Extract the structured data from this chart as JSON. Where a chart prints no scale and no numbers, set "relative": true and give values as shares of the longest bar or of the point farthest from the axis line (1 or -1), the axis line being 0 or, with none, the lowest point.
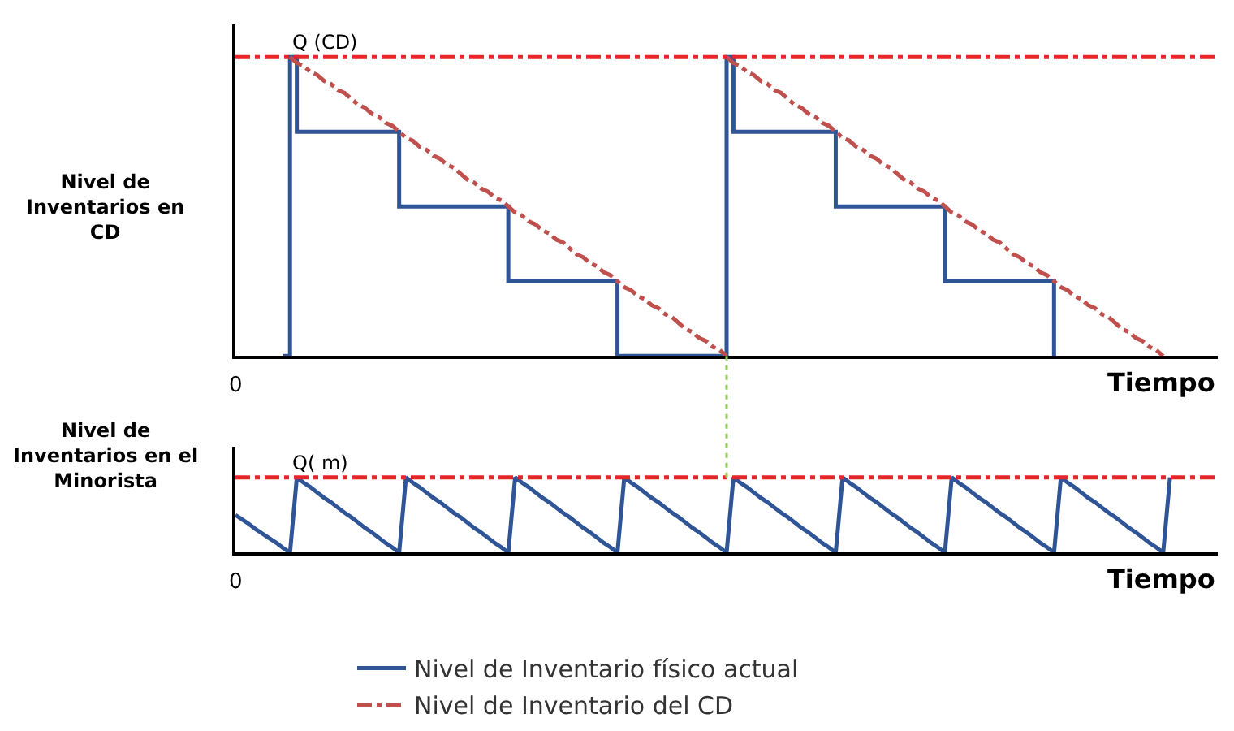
{
  "chart_data": [
    {
      "type": "line",
      "relative": true,
      "ylabel": "Nivel de\nInventarios en\nCD",
      "xlabel": "Tiempo",
      "annotations": [
        "0"
      ],
      "legend": "bottom",
      "categories": [
        null,
        null,
        null,
        null,
        null,
        null,
        null,
        null,
        null,
        null,
        null,
        null,
        null,
        null,
        null,
        null,
        null,
        null,
        null,
        null,
        null,
        null,
        null,
        null,
        null,
        null,
        null,
        null,
        null,
        null,
        null,
        null,
        null,
        null,
        null,
        null,
        null,
        null,
        null,
        null,
        null,
        null,
        null,
        null,
        null,
        null,
        null,
        null,
        null,
        null,
        null,
        null,
        null,
        null,
        null,
        null,
        null,
        null,
        null,
        null,
        null,
        null,
        null,
        null,
        null,
        null,
        null,
        null,
        null,
        null,
        null,
        null,
        null,
        null,
        null,
        null,
        null,
        null,
        null,
        null,
        null,
        null,
        null,
        null,
        null,
        null,
        null,
        null,
        null,
        null,
        null,
        null,
        null,
        null,
        null,
        null,
        null,
        null,
        null,
        null,
        null,
        null,
        null,
        null,
        null,
        null,
        null,
        null,
        null,
        null,
        null,
        null,
        null,
        null,
        null,
        null,
        null,
        null,
        null,
        null,
        null,
        null,
        null,
        null,
        null,
        null,
        null,
        null,
        null,
        null,
        null,
        null,
        null,
        null,
        null,
        null,
        null,
        null,
        null,
        null,
        null,
        null,
        null,
        null,
        null
      ],
      "series": [
        {
          "name": "Nivel de Inventario físico actual",
          "type": "step",
          "color": "#2f5597",
          "line_style": "solid",
          "values": [
            null,
            null,
            null,
            null,
            null,
            null,
            null,
            0,
            1,
            0.75,
            0.75,
            0.75,
            0.75,
            0.75,
            0.75,
            0.75,
            0.75,
            0.75,
            0.75,
            0.75,
            0.75,
            0.75,
            0.75,
            0.75,
            0.5,
            0.5,
            0.5,
            0.5,
            0.5,
            0.5,
            0.5,
            0.5,
            0.5,
            0.5,
            0.5,
            0.5,
            0.5,
            0.5,
            0.5,
            0.5,
            0.25,
            0.25,
            0.25,
            0.25,
            0.25,
            0.25,
            0.25,
            0.25,
            0.25,
            0.25,
            0.25,
            0.25,
            0.25,
            0.25,
            0.25,
            0.25,
            0,
            0,
            0,
            0,
            0,
            0,
            0,
            0,
            0,
            0,
            0,
            0,
            0,
            0,
            0,
            0,
            1,
            0.75,
            0.75,
            0.75,
            0.75,
            0.75,
            0.75,
            0.75,
            0.75,
            0.75,
            0.75,
            0.75,
            0.75,
            0.75,
            0.75,
            0.75,
            0.5,
            0.5,
            0.5,
            0.5,
            0.5,
            0.5,
            0.5,
            0.5,
            0.5,
            0.5,
            0.5,
            0.5,
            0.5,
            0.5,
            0.5,
            0.5,
            0.25,
            0.25,
            0.25,
            0.25,
            0.25,
            0.25,
            0.25,
            0.25,
            0.25,
            0.25,
            0.25,
            0.25,
            0.25,
            0.25,
            0.25,
            0.25,
            0,
            null,
            null,
            null,
            null,
            null,
            null,
            null,
            null,
            null,
            null,
            null,
            null,
            null,
            null,
            null,
            null,
            null,
            null,
            null,
            null,
            null,
            null,
            null,
            null
          ]
        },
        {
          "name": "Nivel de Inventario del CD",
          "color": "#c0504d",
          "line_style": "dashdot",
          "values": [
            null,
            null,
            null,
            null,
            null,
            null,
            null,
            null,
            1,
            0.98,
            0.97,
            0.95,
            0.94,
            0.92,
            0.91,
            0.89,
            0.88,
            0.86,
            0.84,
            0.83,
            0.81,
            0.8,
            0.78,
            0.77,
            0.75,
            0.73,
            0.72,
            0.7,
            0.69,
            0.67,
            0.66,
            0.64,
            0.63,
            0.61,
            0.59,
            0.58,
            0.56,
            0.55,
            0.53,
            0.52,
            0.5,
            0.48,
            0.47,
            0.45,
            0.44,
            0.42,
            0.41,
            0.39,
            0.38,
            0.36,
            0.34,
            0.33,
            0.31,
            0.3,
            0.28,
            0.27,
            0.25,
            0.23,
            0.22,
            0.2,
            0.19,
            0.17,
            0.16,
            0.14,
            0.13,
            0.11,
            0.09,
            0.08,
            0.06,
            0.05,
            0.03,
            0.02,
            0,
            null,
            null,
            null,
            null,
            null,
            null,
            null,
            null,
            null,
            null,
            null,
            null,
            null,
            null,
            null,
            null,
            null,
            null,
            null,
            null,
            null,
            null,
            null,
            null,
            null,
            null,
            null,
            null,
            null,
            null,
            null,
            null,
            null,
            null,
            null,
            null,
            null,
            null,
            null,
            null,
            null,
            null,
            null,
            null,
            null,
            null,
            null,
            null,
            null,
            null,
            null,
            null,
            null,
            null,
            null,
            null,
            null,
            null,
            null,
            null,
            null,
            null,
            null,
            null,
            null,
            null,
            null,
            null,
            null,
            null,
            null,
            null
          ]
        },
        {
          "color": "#c0504d",
          "line_style": "dashdot",
          "values": [
            null,
            null,
            null,
            null,
            null,
            null,
            null,
            null,
            null,
            null,
            null,
            null,
            null,
            null,
            null,
            null,
            null,
            null,
            null,
            null,
            null,
            null,
            null,
            null,
            null,
            null,
            null,
            null,
            null,
            null,
            null,
            null,
            null,
            null,
            null,
            null,
            null,
            null,
            null,
            null,
            null,
            null,
            null,
            null,
            null,
            null,
            null,
            null,
            null,
            null,
            null,
            null,
            null,
            null,
            null,
            null,
            null,
            null,
            null,
            null,
            null,
            null,
            null,
            null,
            null,
            null,
            null,
            null,
            null,
            null,
            null,
            null,
            1,
            0.98,
            0.97,
            0.95,
            0.94,
            0.92,
            0.91,
            0.89,
            0.88,
            0.86,
            0.84,
            0.83,
            0.81,
            0.8,
            0.78,
            0.77,
            0.75,
            0.73,
            0.72,
            0.7,
            0.69,
            0.67,
            0.66,
            0.64,
            0.63,
            0.61,
            0.59,
            0.58,
            0.56,
            0.55,
            0.53,
            0.52,
            0.5,
            0.48,
            0.47,
            0.45,
            0.44,
            0.42,
            0.41,
            0.39,
            0.38,
            0.36,
            0.34,
            0.33,
            0.31,
            0.3,
            0.28,
            0.27,
            0.25,
            0.23,
            0.22,
            0.2,
            0.19,
            0.17,
            0.16,
            0.14,
            0.13,
            0.11,
            0.09,
            0.08,
            0.06,
            0.05,
            0.03,
            0.02,
            0,
            null,
            null,
            null,
            null,
            null,
            null,
            null,
            null
          ]
        }
      ],
      "ref_lines": [
        {
          "axis": "y",
          "value": 1,
          "label": "Q (CD)",
          "color": "#e8262a",
          "line_style": "dashdot"
        }
      ]
    },
    {
      "type": "line",
      "relative": true,
      "ylabel": "Nivel de\nInventarios en el\nMinorista",
      "xlabel": "Tiempo",
      "annotations": [
        "0"
      ],
      "categories": [
        null,
        null,
        null,
        null,
        null,
        null,
        null,
        null,
        null,
        null,
        null,
        null,
        null,
        null,
        null,
        null,
        null,
        null,
        null,
        null,
        null,
        null,
        null,
        null,
        null,
        null,
        null,
        null,
        null,
        null,
        null,
        null,
        null,
        null,
        null,
        null,
        null,
        null,
        null,
        null,
        null,
        null,
        null,
        null,
        null,
        null,
        null,
        null,
        null,
        null,
        null,
        null,
        null,
        null,
        null,
        null,
        null,
        null,
        null,
        null,
        null,
        null,
        null,
        null,
        null,
        null,
        null,
        null,
        null,
        null,
        null,
        null,
        null,
        null,
        null,
        null,
        null,
        null,
        null,
        null,
        null,
        null,
        null,
        null,
        null,
        null,
        null,
        null,
        null,
        null,
        null,
        null,
        null,
        null,
        null,
        null,
        null,
        null,
        null,
        null,
        null,
        null,
        null,
        null,
        null,
        null,
        null,
        null,
        null,
        null,
        null,
        null,
        null,
        null,
        null,
        null,
        null,
        null,
        null,
        null,
        null,
        null,
        null,
        null,
        null,
        null,
        null,
        null,
        null,
        null,
        null,
        null,
        null,
        null,
        null,
        null,
        null,
        null,
        null,
        null,
        null,
        null,
        null,
        null,
        null
      ],
      "series": [
        {
          "color": "#2f5597",
          "line_style": "solid",
          "values": [
            0.5,
            0.44,
            0.38,
            0.31,
            0.25,
            0.19,
            0.13,
            0.06,
            0,
            1,
            0.93,
            0.87,
            0.8,
            0.73,
            0.67,
            0.6,
            0.53,
            0.47,
            0.4,
            0.33,
            0.27,
            0.2,
            0.13,
            0.07,
            0,
            1,
            0.93,
            0.87,
            0.8,
            0.73,
            0.67,
            0.6,
            0.53,
            0.47,
            0.4,
            0.33,
            0.27,
            0.2,
            0.13,
            0.07,
            0,
            1,
            0.93,
            0.87,
            0.8,
            0.73,
            0.67,
            0.6,
            0.53,
            0.47,
            0.4,
            0.33,
            0.27,
            0.2,
            0.13,
            0.07,
            0,
            1,
            0.93,
            0.87,
            0.8,
            0.73,
            0.67,
            0.6,
            0.53,
            0.47,
            0.4,
            0.33,
            0.27,
            0.2,
            0.13,
            0.07,
            0,
            1,
            0.93,
            0.87,
            0.8,
            0.73,
            0.67,
            0.6,
            0.53,
            0.47,
            0.4,
            0.33,
            0.27,
            0.2,
            0.13,
            0.07,
            0,
            1,
            0.93,
            0.87,
            0.8,
            0.73,
            0.67,
            0.6,
            0.53,
            0.47,
            0.4,
            0.33,
            0.27,
            0.2,
            0.13,
            0.07,
            0,
            1,
            0.93,
            0.87,
            0.8,
            0.73,
            0.67,
            0.6,
            0.53,
            0.47,
            0.4,
            0.33,
            0.27,
            0.2,
            0.13,
            0.07,
            0,
            1,
            0.93,
            0.87,
            0.8,
            0.73,
            0.67,
            0.6,
            0.53,
            0.47,
            0.4,
            0.33,
            0.27,
            0.2,
            0.13,
            0.07,
            0,
            1,
            null,
            null,
            null,
            null,
            null,
            null,
            null
          ]
        }
      ],
      "ref_lines": [
        {
          "axis": "y",
          "value": 1,
          "label": "Q( m)",
          "color": "#e8262a",
          "line_style": "dashdot"
        }
      ]
    }
  ]
}
